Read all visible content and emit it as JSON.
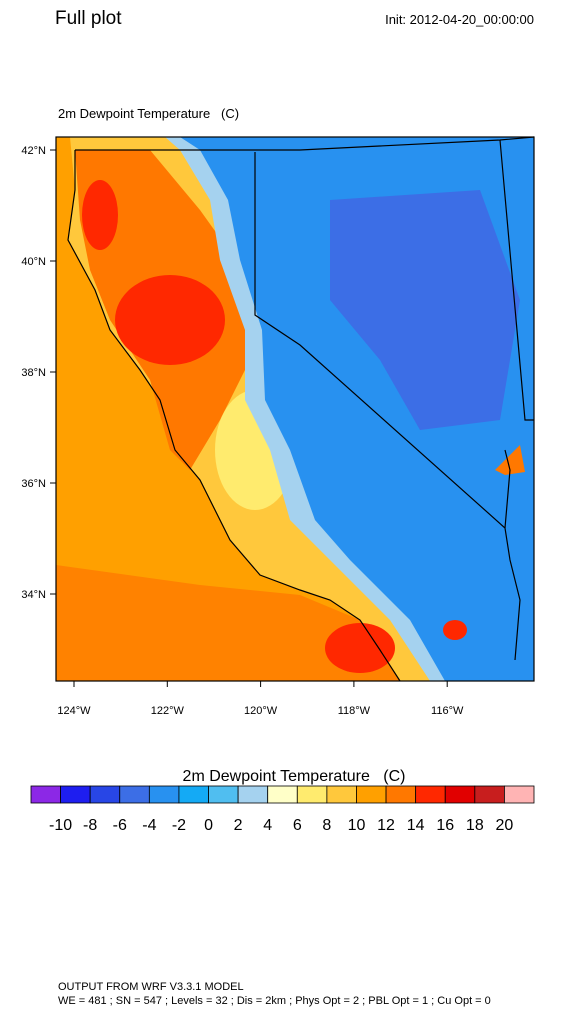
{
  "header": {
    "title": "Full plot",
    "init": "Init: 2012-04-20_00:00:00"
  },
  "plot": {
    "title": "2m Dewpoint Temperature   (C)",
    "lat_labels": [
      "42°N",
      "40°N",
      "38°N",
      "36°N",
      "34°N"
    ],
    "lon_labels": [
      "124°W",
      "122°W",
      "120°W",
      "118°W",
      "116°W"
    ]
  },
  "colorbar": {
    "title": "2m Dewpoint Temperature   (C)",
    "colors": [
      "#8c28e6",
      "#1e1ef0",
      "#2846e6",
      "#3c6ee6",
      "#2891f0",
      "#14aaf5",
      "#50bef0",
      "#a5d2ef",
      "#ffffc8",
      "#ffeb6e",
      "#ffc83c",
      "#ffa000",
      "#ff7800",
      "#ff2800",
      "#e10000",
      "#c81e1e",
      "#ffb4b4"
    ],
    "labels": [
      "-10",
      "-8",
      "-6",
      "-4",
      "-2",
      "0",
      "2",
      "4",
      "6",
      "8",
      "10",
      "12",
      "14",
      "16",
      "18",
      "20"
    ]
  },
  "footer": {
    "line1": "OUTPUT FROM WRF V3.3.1 MODEL",
    "line2": "WE = 481 ; SN = 547 ; Levels = 32 ; Dis = 2km ; Phys Opt = 2 ; PBL Opt = 1 ; Cu Opt = 0"
  }
}
